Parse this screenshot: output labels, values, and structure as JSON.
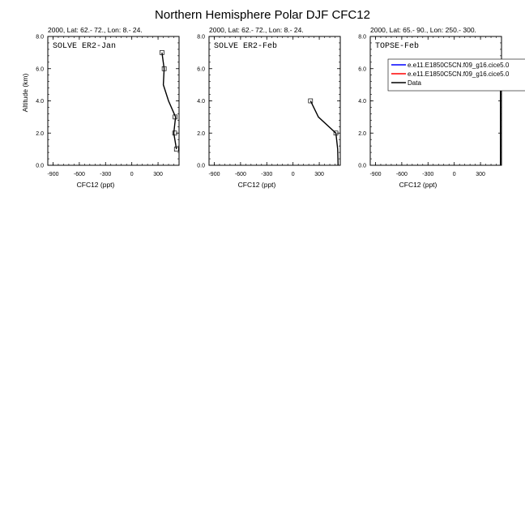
{
  "figure": {
    "title": "Northern Hemisphere Polar DJF CFC12"
  },
  "chart_data": [
    {
      "type": "line",
      "subtitle": "2000, Lat: 62.- 72., Lon: 8.- 24.",
      "panel_label": "SOLVE ER2-Jan",
      "xlabel": "CFC12 (ppt)",
      "ylabel": "Altitude (km)",
      "xlim": [
        -960,
        540
      ],
      "ylim": [
        0,
        8
      ],
      "xticks": [
        -900,
        -600,
        -300,
        0,
        300
      ],
      "xtick_labels": [
        "-900",
        "-600",
        "-300",
        "0",
        "300"
      ],
      "yticks": [
        0,
        2,
        4,
        6,
        8
      ],
      "ytick_labels": [
        "0.0",
        "2.0",
        "4.0",
        "6.0",
        "8.0"
      ],
      "series": [
        {
          "name": "Data",
          "color": "#000000",
          "x": [
            345,
            370,
            360,
            420,
            500,
            480,
            510
          ],
          "y": [
            7.0,
            6.0,
            5.0,
            4.0,
            3.0,
            2.0,
            1.0
          ]
        }
      ],
      "markers": {
        "x": [
          345,
          370,
          495,
          490,
          510
        ],
        "y": [
          7.0,
          6.0,
          3.0,
          2.0,
          1.0
        ]
      }
    },
    {
      "type": "line",
      "subtitle": "2000, Lat: 62.- 72., Lon: 8.- 24.",
      "panel_label": "SOLVE ER2-Feb",
      "xlabel": "CFC12 (ppt)",
      "ylabel": "",
      "xlim": [
        -960,
        540
      ],
      "ylim": [
        0,
        8
      ],
      "xticks": [
        -900,
        -600,
        -300,
        0,
        300
      ],
      "xtick_labels": [
        "-900",
        "-600",
        "-300",
        "0",
        "300"
      ],
      "yticks": [
        0,
        2,
        4,
        6,
        8
      ],
      "ytick_labels": [
        "0.0",
        "2.0",
        "4.0",
        "6.0",
        "8.0"
      ],
      "series": [
        {
          "name": "Data",
          "color": "#000000",
          "x": [
            200,
            290,
            490,
            510,
            515
          ],
          "y": [
            4.0,
            3.0,
            2.0,
            1.0,
            0.0
          ]
        }
      ],
      "markers": {
        "x": [
          200,
          490
        ],
        "y": [
          4.0,
          2.0
        ]
      }
    },
    {
      "type": "line",
      "subtitle": "2000, Lat: 65.- 90., Lon: 250.- 300.",
      "panel_label": "TOPSE-Feb",
      "xlabel": "CFC12 (ppt)",
      "ylabel": "",
      "xlim": [
        -960,
        540
      ],
      "ylim": [
        0,
        8
      ],
      "xticks": [
        -900,
        -600,
        -300,
        0,
        300
      ],
      "xtick_labels": [
        "-900",
        "-600",
        "-300",
        "0",
        "300"
      ],
      "yticks": [
        0,
        2,
        4,
        6,
        8
      ],
      "ytick_labels": [
        "0.0",
        "2.0",
        "4.0",
        "6.0",
        "8.0"
      ],
      "series": [
        {
          "name": "Data",
          "color": "#000000",
          "x": [
            528,
            528
          ],
          "y": [
            0.0,
            6.5
          ]
        }
      ],
      "markers": {
        "x": [],
        "y": []
      },
      "legend": {
        "placement": "top-right",
        "entries": [
          {
            "label": "e.e11.E1850C5CN.f09_g16.cice5.0",
            "color": "#0000ff"
          },
          {
            "label": "e.e11.E1850C5CN.f09_g16.cice5.0",
            "color": "#ff0000"
          },
          {
            "label": "Data",
            "color": "#000000"
          }
        ]
      }
    }
  ]
}
